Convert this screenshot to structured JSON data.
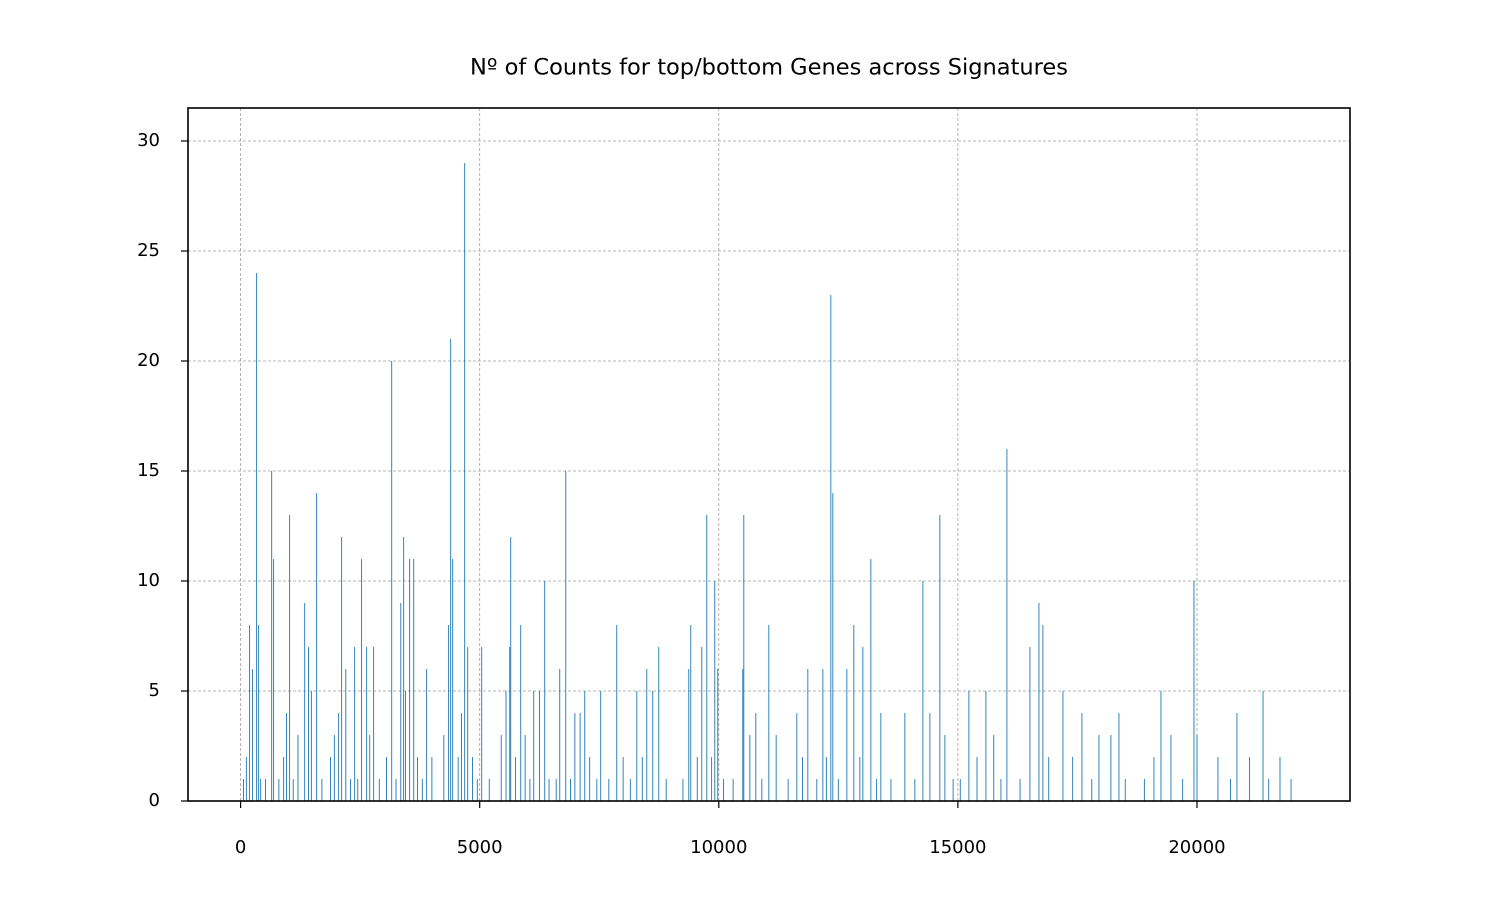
{
  "chart_data": {
    "type": "bar",
    "title": "Nº of Counts for top/bottom Genes across Signatures",
    "color": "#1f77b4",
    "grid": true,
    "xlim": [
      -1100,
      23200
    ],
    "ylim": [
      0,
      31.5
    ],
    "xticks": [
      0,
      5000,
      10000,
      15000,
      20000
    ],
    "yticks": [
      0,
      5,
      10,
      15,
      20,
      25,
      30
    ],
    "x": [
      188,
      250,
      335,
      377,
      650,
      690,
      1025,
      1340,
      1420,
      1590,
      2113,
      2200,
      2385,
      2530,
      2636,
      2782,
      3160,
      3350,
      3410,
      3535,
      3620,
      3890,
      4350,
      4393,
      4435,
      4686,
      4749,
      5042,
      5628,
      5649,
      5858,
      6130,
      6360,
      6674,
      6800,
      6990,
      7197,
      7531,
      7866,
      8285,
      8494,
      8619,
      8745,
      9372,
      9414,
      9644,
      9749,
      9916,
      9979,
      10502,
      10523,
      10774,
      11046,
      11632,
      11862,
      12176,
      12343,
      12385,
      12678,
      12824,
      13013,
      13180,
      13389,
      13891,
      14268,
      14414,
      14623,
      14728,
      15230,
      15586,
      16025,
      16506,
      16695,
      16778,
      17197,
      17594,
      17950,
      18200,
      18368,
      19247,
      19456,
      19937,
      20000,
      20439,
      20836,
      21381,
      21736,
      21967,
      60,
      120,
      420,
      520,
      800,
      900,
      960,
      1100,
      1200,
      1480,
      1700,
      1880,
      1960,
      2050,
      2300,
      2450,
      2700,
      2900,
      3050,
      3250,
      3450,
      3700,
      3800,
      4000,
      4250,
      4550,
      4620,
      4850,
      4950,
      5200,
      5450,
      5550,
      5750,
      5950,
      6050,
      6250,
      6450,
      6600,
      6900,
      7100,
      7300,
      7450,
      7700,
      8000,
      8150,
      8400,
      8900,
      9250,
      9550,
      9850,
      10100,
      10300,
      10650,
      10900,
      11200,
      11450,
      11750,
      12050,
      12250,
      12500,
      12950,
      13300,
      13600,
      14100,
      14900,
      15050,
      15400,
      15750,
      15900,
      16300,
      16900,
      17400,
      17800,
      18500,
      18900,
      19100,
      19700,
      20700,
      21100,
      21500
    ],
    "values": [
      8,
      6,
      24,
      8,
      15,
      11,
      13,
      9,
      7,
      14,
      12,
      6,
      7,
      11,
      7,
      7,
      20,
      9,
      12,
      11,
      11,
      6,
      8,
      21,
      11,
      29,
      7,
      7,
      7,
      12,
      8,
      5,
      10,
      6,
      15,
      4,
      5,
      5,
      8,
      5,
      6,
      5,
      7,
      6,
      8,
      7,
      13,
      10,
      6,
      6,
      13,
      4,
      8,
      4,
      6,
      6,
      23,
      14,
      6,
      8,
      7,
      11,
      4,
      4,
      10,
      4,
      13,
      3,
      5,
      5,
      16,
      7,
      9,
      8,
      5,
      4,
      3,
      3,
      4,
      5,
      3,
      10,
      3,
      2,
      4,
      5,
      2,
      1,
      1,
      2,
      1,
      1,
      1,
      2,
      4,
      1,
      3,
      5,
      1,
      2,
      3,
      4,
      1,
      1,
      3,
      1,
      2,
      1,
      5,
      2,
      1,
      2,
      3,
      2,
      4,
      2,
      1,
      1,
      3,
      5,
      2,
      3,
      1,
      5,
      1,
      1,
      1,
      4,
      2,
      1,
      1,
      2,
      1,
      2,
      1,
      1,
      2,
      2,
      1,
      1,
      3,
      1,
      3,
      1,
      2,
      1,
      2,
      1,
      2,
      1,
      1,
      1,
      1,
      1,
      2,
      3,
      1,
      1,
      2,
      2,
      1,
      1,
      1,
      2,
      1,
      1,
      2,
      1
    ]
  }
}
